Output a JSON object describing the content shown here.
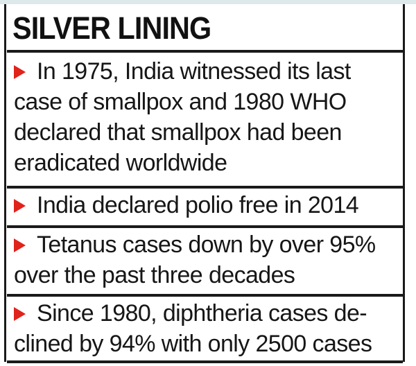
{
  "box": {
    "title": "SILVER LINING",
    "items": [
      {
        "lines": [
          "In 1975, India witnessed its last",
          "case of smallpox and 1980 WHO",
          "declared that smallpox had been",
          "eradicated worldwide"
        ]
      },
      {
        "lines": [
          "India declared polio free in 2014"
        ]
      },
      {
        "lines": [
          "Tetanus cases down by over 95%",
          "over the past three decades"
        ]
      },
      {
        "lines": [
          "Since 1980, diphtheria cases de-",
          "clined by 94% with only 2500 cases"
        ]
      }
    ]
  },
  "colors": {
    "bullet": "#e0231b",
    "text": "#161616",
    "rule": "#1a1a1a",
    "top_strip": "#dde9ea"
  },
  "icons": {
    "bullet": "red-triangle-bullet-icon"
  }
}
